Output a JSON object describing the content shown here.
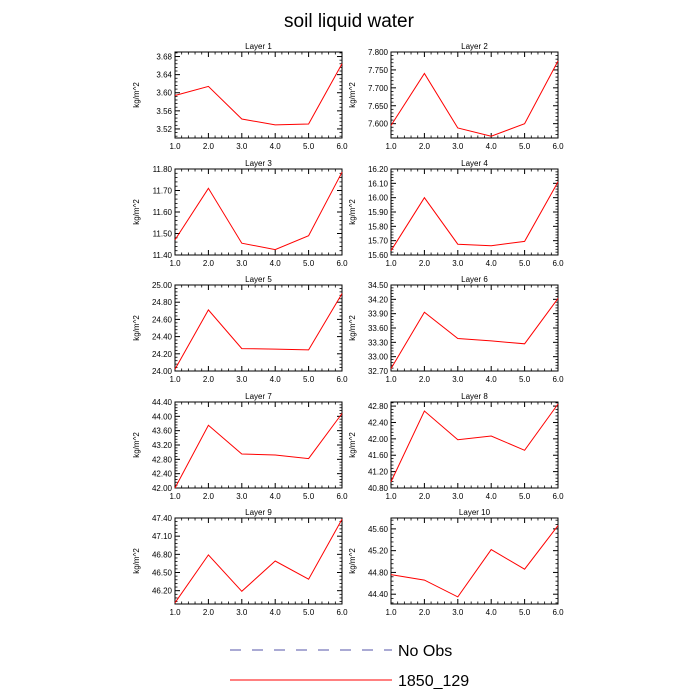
{
  "title": "soil liquid water",
  "legend": {
    "obs_label": "No Obs",
    "obs_color": "#5555aa",
    "model_label": "1850_129",
    "model_color": "#ff0000"
  },
  "chart_data": [
    {
      "type": "line",
      "title": "Layer 1",
      "xlabel": "",
      "ylabel": "kg/m^2",
      "x": [
        1,
        2,
        3,
        4,
        5,
        6
      ],
      "xticks": [
        "1.0",
        "2.0",
        "3.0",
        "4.0",
        "5.0",
        "6.0"
      ],
      "ylim": [
        3.5,
        3.69
      ],
      "yticks": [
        3.52,
        3.56,
        3.6,
        3.64,
        3.68
      ],
      "ytick_labels": [
        "3.52",
        "3.56",
        "3.60",
        "3.64",
        "3.68"
      ],
      "series": [
        {
          "name": "1850_129",
          "color": "#ff0000",
          "values": [
            3.594,
            3.614,
            3.542,
            3.529,
            3.531,
            3.664
          ]
        }
      ]
    },
    {
      "type": "line",
      "title": "Layer 2",
      "xlabel": "",
      "ylabel": "kg/m^2",
      "x": [
        1,
        2,
        3,
        4,
        5,
        6
      ],
      "xticks": [
        "1.0",
        "2.0",
        "3.0",
        "4.0",
        "5.0",
        "6.0"
      ],
      "ylim": [
        7.56,
        7.8
      ],
      "yticks": [
        7.6,
        7.65,
        7.7,
        7.75,
        7.8
      ],
      "ytick_labels": [
        "7.600",
        "7.650",
        "7.700",
        "7.750",
        "7.800"
      ],
      "series": [
        {
          "name": "1850_129",
          "color": "#ff0000",
          "values": [
            7.595,
            7.74,
            7.588,
            7.565,
            7.6,
            7.775
          ]
        }
      ]
    },
    {
      "type": "line",
      "title": "Layer 3",
      "xlabel": "",
      "ylabel": "kg/m^2",
      "x": [
        1,
        2,
        3,
        4,
        5,
        6
      ],
      "xticks": [
        "1.0",
        "2.0",
        "3.0",
        "4.0",
        "5.0",
        "6.0"
      ],
      "ylim": [
        11.4,
        11.8
      ],
      "yticks": [
        11.4,
        11.5,
        11.6,
        11.7,
        11.8
      ],
      "ytick_labels": [
        "11.40",
        "11.50",
        "11.60",
        "11.70",
        "11.80"
      ],
      "series": [
        {
          "name": "1850_129",
          "color": "#ff0000",
          "values": [
            11.47,
            11.71,
            11.455,
            11.425,
            11.49,
            11.785
          ]
        }
      ]
    },
    {
      "type": "line",
      "title": "Layer 4",
      "xlabel": "",
      "ylabel": "kg/m^2",
      "x": [
        1,
        2,
        3,
        4,
        5,
        6
      ],
      "xticks": [
        "1.0",
        "2.0",
        "3.0",
        "4.0",
        "5.0",
        "6.0"
      ],
      "ylim": [
        15.6,
        16.2
      ],
      "yticks": [
        15.6,
        15.7,
        15.8,
        15.9,
        16.0,
        16.1,
        16.2
      ],
      "ytick_labels": [
        "15.60",
        "15.70",
        "15.80",
        "15.90",
        "16.00",
        "16.10",
        "16.20"
      ],
      "series": [
        {
          "name": "1850_129",
          "color": "#ff0000",
          "values": [
            15.63,
            16.0,
            15.675,
            15.665,
            15.695,
            16.11
          ]
        }
      ]
    },
    {
      "type": "line",
      "title": "Layer 5",
      "xlabel": "",
      "ylabel": "kg/m^2",
      "x": [
        1,
        2,
        3,
        4,
        5,
        6
      ],
      "xticks": [
        "1.0",
        "2.0",
        "3.0",
        "4.0",
        "5.0",
        "6.0"
      ],
      "ylim": [
        24.0,
        25.0
      ],
      "yticks": [
        24.0,
        24.2,
        24.4,
        24.6,
        24.8,
        25.0
      ],
      "ytick_labels": [
        "24.00",
        "24.20",
        "24.40",
        "24.60",
        "24.80",
        "25.00"
      ],
      "series": [
        {
          "name": "1850_129",
          "color": "#ff0000",
          "values": [
            24.02,
            24.71,
            24.26,
            24.255,
            24.245,
            24.9
          ]
        }
      ]
    },
    {
      "type": "line",
      "title": "Layer 6",
      "xlabel": "",
      "ylabel": "kg/m^2",
      "x": [
        1,
        2,
        3,
        4,
        5,
        6
      ],
      "xticks": [
        "1.0",
        "2.0",
        "3.0",
        "4.0",
        "5.0",
        "6.0"
      ],
      "ylim": [
        32.7,
        34.5
      ],
      "yticks": [
        32.7,
        33.0,
        33.3,
        33.6,
        33.9,
        34.2,
        34.5
      ],
      "ytick_labels": [
        "32.70",
        "33.00",
        "33.30",
        "33.60",
        "33.90",
        "34.20",
        "34.50"
      ],
      "series": [
        {
          "name": "1850_129",
          "color": "#ff0000",
          "values": [
            32.75,
            33.93,
            33.38,
            33.33,
            33.27,
            34.22
          ]
        }
      ]
    },
    {
      "type": "line",
      "title": "Layer 7",
      "xlabel": "",
      "ylabel": "kg/m^2",
      "x": [
        1,
        2,
        3,
        4,
        5,
        6
      ],
      "xticks": [
        "1.0",
        "2.0",
        "3.0",
        "4.0",
        "5.0",
        "6.0"
      ],
      "ylim": [
        42.0,
        44.4
      ],
      "yticks": [
        42.0,
        42.4,
        42.8,
        43.2,
        43.6,
        44.0,
        44.4
      ],
      "ytick_labels": [
        "42.00",
        "42.40",
        "42.80",
        "43.20",
        "43.60",
        "44.00",
        "44.40"
      ],
      "series": [
        {
          "name": "1850_129",
          "color": "#ff0000",
          "values": [
            42.0,
            43.75,
            42.95,
            42.92,
            42.82,
            44.08
          ]
        }
      ]
    },
    {
      "type": "line",
      "title": "Layer 8",
      "xlabel": "",
      "ylabel": "kg/m^2",
      "x": [
        1,
        2,
        3,
        4,
        5,
        6
      ],
      "xticks": [
        "1.0",
        "2.0",
        "3.0",
        "4.0",
        "5.0",
        "6.0"
      ],
      "ylim": [
        40.8,
        42.9
      ],
      "yticks": [
        40.8,
        41.2,
        41.6,
        42.0,
        42.4,
        42.8
      ],
      "ytick_labels": [
        "40.80",
        "41.20",
        "41.60",
        "42.00",
        "42.40",
        "42.80"
      ],
      "series": [
        {
          "name": "1850_129",
          "color": "#ff0000",
          "values": [
            40.95,
            42.68,
            41.98,
            42.07,
            41.72,
            42.85
          ]
        }
      ]
    },
    {
      "type": "line",
      "title": "Layer 9",
      "xlabel": "",
      "ylabel": "kg/m^2",
      "x": [
        1,
        2,
        3,
        4,
        5,
        6
      ],
      "xticks": [
        "1.0",
        "2.0",
        "3.0",
        "4.0",
        "5.0",
        "6.0"
      ],
      "ylim": [
        45.98,
        47.4
      ],
      "yticks": [
        46.2,
        46.5,
        46.8,
        47.1,
        47.4
      ],
      "ytick_labels": [
        "46.20",
        "46.50",
        "46.80",
        "47.10",
        "47.40"
      ],
      "series": [
        {
          "name": "1850_129",
          "color": "#ff0000",
          "values": [
            46.0,
            46.79,
            46.19,
            46.69,
            46.39,
            47.38
          ]
        }
      ]
    },
    {
      "type": "line",
      "title": "Layer 10",
      "xlabel": "",
      "ylabel": "kg/m^2",
      "x": [
        1,
        2,
        3,
        4,
        5,
        6
      ],
      "xticks": [
        "1.0",
        "2.0",
        "3.0",
        "4.0",
        "5.0",
        "6.0"
      ],
      "ylim": [
        44.22,
        45.8
      ],
      "yticks": [
        44.4,
        44.8,
        45.2,
        45.6
      ],
      "ytick_labels": [
        "44.40",
        "44.80",
        "45.20",
        "45.60"
      ],
      "series": [
        {
          "name": "1850_129",
          "color": "#ff0000",
          "values": [
            44.76,
            44.66,
            44.35,
            45.22,
            44.86,
            45.66
          ]
        }
      ]
    }
  ]
}
